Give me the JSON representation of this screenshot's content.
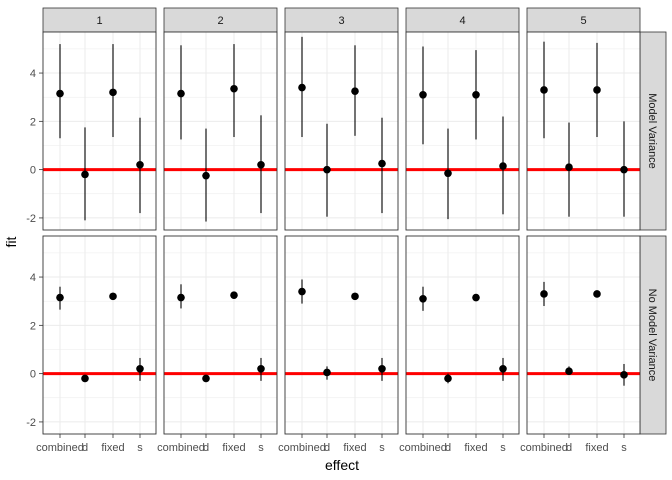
{
  "chart_data": {
    "type": "scatter",
    "subtype": "point-range (faceted)",
    "xlabel": "effect",
    "ylabel": "fit",
    "categories": [
      "combined",
      "d",
      "fixed",
      "s"
    ],
    "ylim": [
      -2.5,
      5.7
    ],
    "yticks": [
      -2,
      0,
      2,
      4
    ],
    "grid": true,
    "reference_line": {
      "y": 0,
      "color": "#ff0000"
    },
    "col_facets": [
      "1",
      "2",
      "3",
      "4",
      "5"
    ],
    "row_facets": [
      "Model Variance",
      "No Model Variance"
    ],
    "panels": [
      {
        "col": "1",
        "row": "Model Variance",
        "fit": [
          3.15,
          -0.2,
          3.2,
          0.2
        ],
        "lower": [
          1.3,
          -2.1,
          1.35,
          -1.8
        ],
        "upper": [
          5.2,
          1.75,
          5.2,
          2.15
        ]
      },
      {
        "col": "2",
        "row": "Model Variance",
        "fit": [
          3.15,
          -0.25,
          3.35,
          0.2
        ],
        "lower": [
          1.25,
          -2.15,
          1.35,
          -1.8
        ],
        "upper": [
          5.15,
          1.7,
          5.2,
          2.25
        ]
      },
      {
        "col": "3",
        "row": "Model Variance",
        "fit": [
          3.4,
          0.0,
          3.25,
          0.25
        ],
        "lower": [
          1.35,
          -1.95,
          1.4,
          -1.8
        ],
        "upper": [
          5.5,
          1.9,
          5.15,
          2.15
        ]
      },
      {
        "col": "4",
        "row": "Model Variance",
        "fit": [
          3.1,
          -0.15,
          3.1,
          0.15
        ],
        "lower": [
          1.05,
          -2.05,
          1.25,
          -1.85
        ],
        "upper": [
          5.1,
          1.7,
          4.95,
          2.2
        ]
      },
      {
        "col": "5",
        "row": "Model Variance",
        "fit": [
          3.3,
          0.1,
          3.3,
          0.0
        ],
        "lower": [
          1.3,
          -1.95,
          1.35,
          -1.95
        ],
        "upper": [
          5.3,
          1.95,
          5.25,
          2.0
        ]
      },
      {
        "col": "1",
        "row": "No Model Variance",
        "fit": [
          3.15,
          -0.2,
          3.2,
          0.2
        ],
        "lower": [
          2.65,
          -0.35,
          3.05,
          -0.3
        ],
        "upper": [
          3.6,
          -0.05,
          3.35,
          0.65
        ]
      },
      {
        "col": "2",
        "row": "No Model Variance",
        "fit": [
          3.15,
          -0.2,
          3.25,
          0.2
        ],
        "lower": [
          2.7,
          -0.35,
          3.1,
          -0.3
        ],
        "upper": [
          3.7,
          -0.05,
          3.4,
          0.65
        ]
      },
      {
        "col": "3",
        "row": "No Model Variance",
        "fit": [
          3.4,
          0.05,
          3.2,
          0.2
        ],
        "lower": [
          2.9,
          -0.25,
          3.05,
          -0.3
        ],
        "upper": [
          3.9,
          0.3,
          3.35,
          0.65
        ]
      },
      {
        "col": "4",
        "row": "No Model Variance",
        "fit": [
          3.1,
          -0.2,
          3.15,
          0.2
        ],
        "lower": [
          2.6,
          -0.4,
          3.0,
          -0.3
        ],
        "upper": [
          3.6,
          0.0,
          3.3,
          0.65
        ]
      },
      {
        "col": "5",
        "row": "No Model Variance",
        "fit": [
          3.3,
          0.1,
          3.3,
          -0.05
        ],
        "lower": [
          2.8,
          -0.05,
          3.15,
          -0.5
        ],
        "upper": [
          3.8,
          0.3,
          3.45,
          0.4
        ]
      }
    ],
    "colors": {
      "strip_fill": "#d9d9d9",
      "grid": "#ebebeb",
      "point": "#000000",
      "zero_line": "#ff0000"
    }
  }
}
